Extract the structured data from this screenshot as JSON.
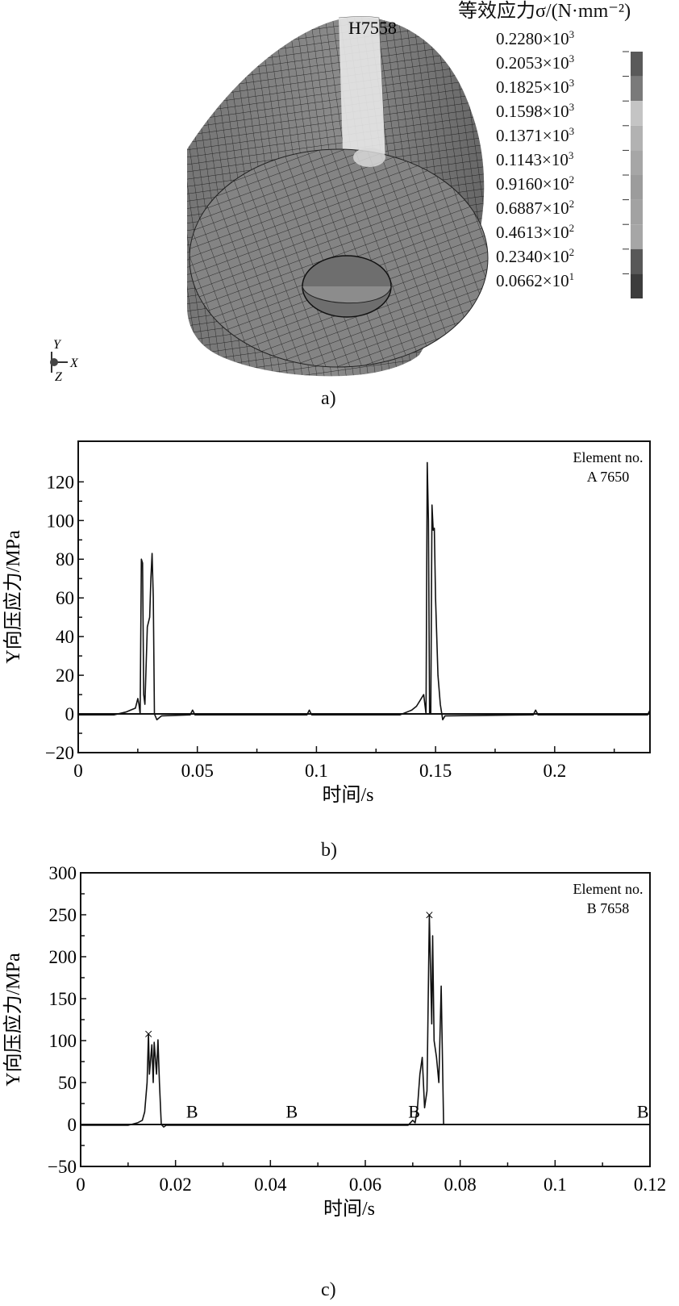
{
  "figure_a": {
    "node_label": "H7558",
    "legend_title": "等效应力σ/(N·mm⁻²)",
    "legend_labels": [
      {
        "mant": "0.2280×10",
        "exp": "3"
      },
      {
        "mant": "0.2053×10",
        "exp": "3"
      },
      {
        "mant": "0.1825×10",
        "exp": "3"
      },
      {
        "mant": "0.1598×10",
        "exp": "3"
      },
      {
        "mant": "0.1371×10",
        "exp": "3"
      },
      {
        "mant": "0.1143×10",
        "exp": "3"
      },
      {
        "mant": "0.9160×10",
        "exp": "2"
      },
      {
        "mant": "0.6887×10",
        "exp": "2"
      },
      {
        "mant": "0.4613×10",
        "exp": "2"
      },
      {
        "mant": "0.2340×10",
        "exp": "2"
      },
      {
        "mant": "0.0662×10",
        "exp": "1"
      }
    ],
    "legend_colors": [
      "#5a5a5a",
      "#7a7a7a",
      "#c4c4c4",
      "#b2b2b2",
      "#a6a6a6",
      "#9c9c9c",
      "#a2a2a2",
      "#a6a6a6",
      "#585858",
      "#3c3c3c"
    ],
    "axis_y": "Y",
    "axis_x": "X",
    "axis_z": "Z",
    "caption": "a)"
  },
  "chart_data": [
    {
      "type": "line",
      "title": "",
      "annotation": [
        "Element no.",
        "A 7650"
      ],
      "xlabel": "时间/s",
      "ylabel": "Y向压应力/MPa",
      "xlim": [
        0,
        0.24
      ],
      "ylim": [
        -20,
        141
      ],
      "xticks": [
        0,
        0.05,
        0.1,
        0.15,
        0.2
      ],
      "xtick_labels": [
        "0",
        "0.05",
        "0.1",
        "0.15",
        "0.2"
      ],
      "yticks": [
        -20,
        0,
        20,
        40,
        60,
        80,
        100,
        120
      ],
      "ytick_labels": [
        "−20",
        "0",
        "20",
        "40",
        "60",
        "80",
        "100",
        "120"
      ],
      "grid": false,
      "caption": "b)",
      "series": [
        {
          "name": "A 7650",
          "x": [
            0,
            0.015,
            0.02,
            0.022,
            0.024,
            0.025,
            0.0255,
            0.026,
            0.0265,
            0.027,
            0.0275,
            0.028,
            0.029,
            0.03,
            0.0305,
            0.031,
            0.0315,
            0.032,
            0.033,
            0.035,
            0.047,
            0.048,
            0.049,
            0.096,
            0.097,
            0.098,
            0.135,
            0.14,
            0.142,
            0.144,
            0.145,
            0.146,
            0.1465,
            0.147,
            0.1475,
            0.148,
            0.1485,
            0.149,
            0.1495,
            0.15,
            0.151,
            0.152,
            0.153,
            0.154,
            0.191,
            0.192,
            0.193,
            0.239,
            0.24
          ],
          "y": [
            -0.5,
            -0.5,
            1,
            2,
            3,
            8,
            5,
            0,
            80,
            78,
            10,
            5,
            45,
            50,
            70,
            83,
            60,
            0,
            -3,
            -1,
            -0.5,
            2,
            -0.5,
            -0.5,
            2,
            -0.5,
            -0.5,
            2,
            4,
            8,
            10,
            0,
            130,
            100,
            0,
            0,
            108,
            95,
            96,
            60,
            20,
            5,
            -3,
            -1,
            -0.5,
            2,
            -0.5,
            -0.5,
            2
          ]
        }
      ]
    },
    {
      "type": "line",
      "title": "",
      "annotation": [
        "Element no.",
        "B 7658"
      ],
      "xlabel": "时间/s",
      "ylabel": "Y向压应力/MPa",
      "xlim": [
        0,
        0.12
      ],
      "ylim": [
        -50,
        300
      ],
      "xticks": [
        0,
        0.02,
        0.04,
        0.06,
        0.08,
        0.1,
        0.12
      ],
      "xtick_labels": [
        "0",
        "0.02",
        "0.04",
        "0.06",
        "0.08",
        "0.1",
        "0.12"
      ],
      "yticks": [
        -50,
        0,
        50,
        100,
        150,
        200,
        250,
        300
      ],
      "ytick_labels": [
        "−50",
        "0",
        "50",
        "100",
        "150",
        "200",
        "250",
        "300"
      ],
      "grid": false,
      "caption": "c)",
      "series": [
        {
          "name": "B 7658",
          "x": [
            0,
            0.01,
            0.012,
            0.013,
            0.0135,
            0.014,
            0.0143,
            0.0145,
            0.015,
            0.0153,
            0.0155,
            0.016,
            0.0163,
            0.0166,
            0.017,
            0.0175,
            0.018,
            0.069,
            0.07,
            0.0705,
            0.071,
            0.0715,
            0.072,
            0.0725,
            0.073,
            0.0735,
            0.074,
            0.0742,
            0.0745,
            0.075,
            0.0755,
            0.076,
            0.0765,
            0.077,
            0.12
          ],
          "y": [
            -1,
            -1,
            2,
            5,
            15,
            50,
            108,
            60,
            95,
            50,
            98,
            60,
            101,
            50,
            0,
            -3,
            -1,
            -1,
            5,
            2,
            20,
            60,
            80,
            20,
            40,
            250,
            120,
            225,
            100,
            80,
            50,
            165,
            0,
            0,
            0
          ]
        }
      ],
      "markers": [
        {
          "x": 0.0143,
          "y": 108,
          "symbol": "×"
        },
        {
          "x": 0.0735,
          "y": 250,
          "symbol": "×"
        }
      ],
      "point_labels": [
        {
          "x": 0.0235,
          "y": 8,
          "text": "B"
        },
        {
          "x": 0.0445,
          "y": 8,
          "text": "B"
        },
        {
          "x": 0.0703,
          "y": 8,
          "text": "B"
        },
        {
          "x": 0.1185,
          "y": 8,
          "text": "B"
        }
      ]
    }
  ]
}
